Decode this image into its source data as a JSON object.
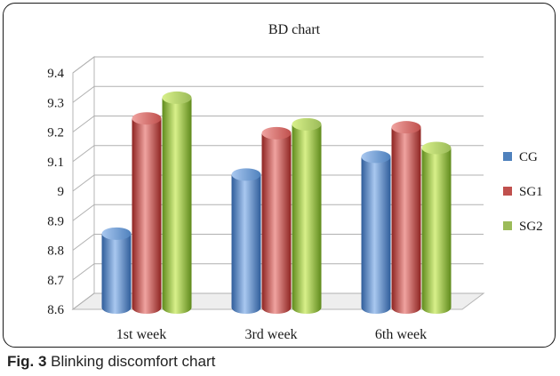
{
  "caption": {
    "label": "Fig. 3",
    "text": "Blinking discomfort chart"
  },
  "chart_data": {
    "type": "bar",
    "title": "BD chart",
    "categories": [
      "1st week",
      "3rd week",
      "6th week"
    ],
    "series": [
      {
        "name": "CG",
        "values": [
          8.85,
          9.05,
          9.11
        ],
        "color": "#4f81bd"
      },
      {
        "name": "SG1",
        "values": [
          9.24,
          9.19,
          9.21
        ],
        "color": "#c0504d"
      },
      {
        "name": "SG2",
        "values": [
          9.31,
          9.22,
          9.14
        ],
        "color": "#9bbb59"
      }
    ],
    "yticks": [
      "8.6",
      "8.7",
      "8.8",
      "8.9",
      "9",
      "9.1",
      "9.2",
      "9.3",
      "9.4"
    ],
    "ylim": [
      8.6,
      9.4
    ],
    "xlabel": "",
    "ylabel": "",
    "grid": true,
    "legend": "right",
    "style": "3d-cylinder"
  }
}
